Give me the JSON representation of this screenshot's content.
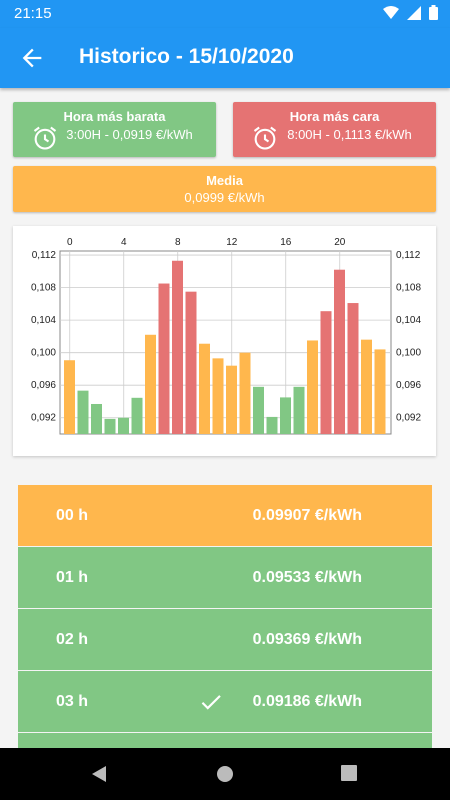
{
  "status": {
    "time": "21:15"
  },
  "appbar": {
    "title": "Historico - 15/10/2020"
  },
  "cards": {
    "cheapest": {
      "title": "Hora más barata",
      "value": "3:00H - 0,0919 €/kWh"
    },
    "expensive": {
      "title": "Hora más cara",
      "value": "8:00H - 0,1113 €/kWh"
    },
    "average": {
      "title": "Media",
      "value": "0,0999 €/kWh"
    }
  },
  "colors": {
    "primary": "#2196f3",
    "green": "#81c784",
    "red": "#e57373",
    "orange": "#ffb74d"
  },
  "chart_data": {
    "type": "bar",
    "x": [
      0,
      1,
      2,
      3,
      4,
      5,
      6,
      7,
      8,
      9,
      10,
      11,
      12,
      13,
      14,
      15,
      16,
      17,
      18,
      19,
      20,
      21,
      22,
      23
    ],
    "values": [
      0.09907,
      0.09533,
      0.09369,
      0.09186,
      0.092,
      0.09445,
      0.1022,
      0.1085,
      0.1113,
      0.1075,
      0.1011,
      0.0993,
      0.0984,
      0.1,
      0.0958,
      0.0921,
      0.0945,
      0.0958,
      0.1015,
      0.1051,
      0.1102,
      0.1061,
      0.1016,
      0.1004
    ],
    "colors": [
      "orange",
      "green",
      "green",
      "green",
      "green",
      "green",
      "orange",
      "red",
      "red",
      "red",
      "orange",
      "orange",
      "orange",
      "orange",
      "green",
      "green",
      "green",
      "green",
      "orange",
      "red",
      "red",
      "red",
      "orange",
      "orange"
    ],
    "xticks": [
      "0",
      "4",
      "8",
      "12",
      "16",
      "20"
    ],
    "yticks": [
      "0,092",
      "0,096",
      "0,100",
      "0,104",
      "0,108",
      "0,112"
    ],
    "ylim": [
      0.09,
      0.1125
    ],
    "grid": true
  },
  "list": [
    {
      "hour": "00 h",
      "price": "0.09907 €/kWh",
      "color": "orange",
      "check": false
    },
    {
      "hour": "01 h",
      "price": "0.09533 €/kWh",
      "color": "green",
      "check": false
    },
    {
      "hour": "02 h",
      "price": "0.09369 €/kWh",
      "color": "green",
      "check": false
    },
    {
      "hour": "03 h",
      "price": "0.09186 €/kWh",
      "color": "green",
      "check": true
    }
  ],
  "icons": {
    "back": "arrow-back-icon",
    "alarm": "alarm-clock-icon",
    "check": "check-icon"
  }
}
